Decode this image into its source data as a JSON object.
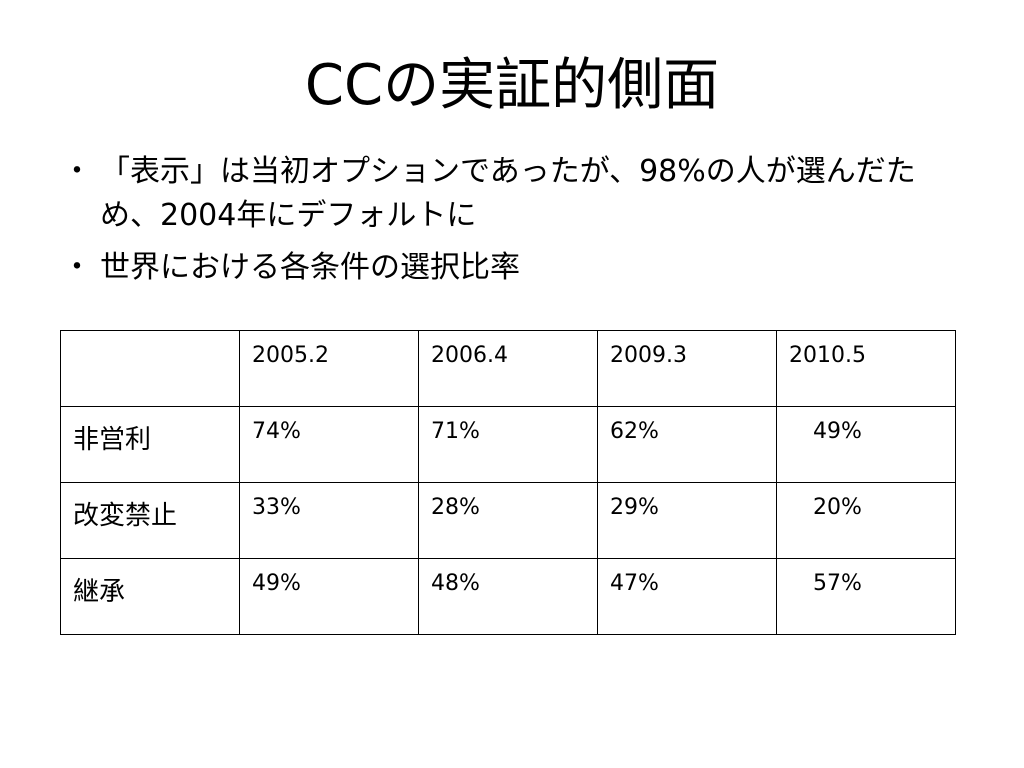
{
  "slide": {
    "title": "CCの実証的側面",
    "bullets": [
      {
        "mark": "・",
        "text": "「表示」は当初オプションであったが、98%の人が選んだため、2004年にデフォルトに"
      },
      {
        "mark": "・",
        "text": "世界における各条件の選択比率"
      }
    ]
  },
  "table": {
    "corner": "",
    "headers": [
      "2005.2",
      "2006.4",
      "2009.3",
      "2010.5"
    ],
    "rows": [
      {
        "label": "非営利",
        "values": [
          "74%",
          "71%",
          "62%",
          "49%"
        ]
      },
      {
        "label": "改変禁止",
        "values": [
          "33%",
          "28%",
          "29%",
          "20%"
        ]
      },
      {
        "label": "継承",
        "values": [
          "49%",
          "48%",
          "47%",
          "57%"
        ]
      }
    ]
  }
}
